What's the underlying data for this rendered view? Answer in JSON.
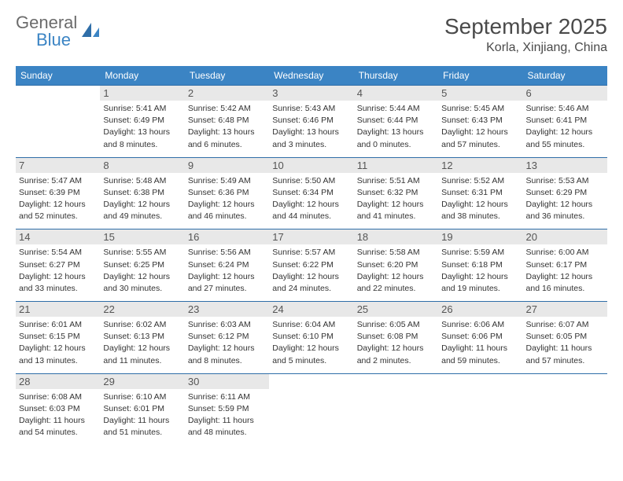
{
  "logo": {
    "text1": "General",
    "text2": "Blue",
    "icon_color": "#2f6ea8"
  },
  "title": "September 2025",
  "location": "Korla, Xinjiang, China",
  "colors": {
    "header_bg": "#3b84c4",
    "header_text": "#ffffff",
    "daynum_bg": "#e8e8e8",
    "daynum_text": "#555555",
    "cell_text": "#333333",
    "border": "#2f6ea8",
    "title_text": "#4a4a4a"
  },
  "weekdays": [
    "Sunday",
    "Monday",
    "Tuesday",
    "Wednesday",
    "Thursday",
    "Friday",
    "Saturday"
  ],
  "weeks": [
    [
      null,
      {
        "n": "1",
        "sr": "Sunrise: 5:41 AM",
        "ss": "Sunset: 6:49 PM",
        "d1": "Daylight: 13 hours",
        "d2": "and 8 minutes."
      },
      {
        "n": "2",
        "sr": "Sunrise: 5:42 AM",
        "ss": "Sunset: 6:48 PM",
        "d1": "Daylight: 13 hours",
        "d2": "and 6 minutes."
      },
      {
        "n": "3",
        "sr": "Sunrise: 5:43 AM",
        "ss": "Sunset: 6:46 PM",
        "d1": "Daylight: 13 hours",
        "d2": "and 3 minutes."
      },
      {
        "n": "4",
        "sr": "Sunrise: 5:44 AM",
        "ss": "Sunset: 6:44 PM",
        "d1": "Daylight: 13 hours",
        "d2": "and 0 minutes."
      },
      {
        "n": "5",
        "sr": "Sunrise: 5:45 AM",
        "ss": "Sunset: 6:43 PM",
        "d1": "Daylight: 12 hours",
        "d2": "and 57 minutes."
      },
      {
        "n": "6",
        "sr": "Sunrise: 5:46 AM",
        "ss": "Sunset: 6:41 PM",
        "d1": "Daylight: 12 hours",
        "d2": "and 55 minutes."
      }
    ],
    [
      {
        "n": "7",
        "sr": "Sunrise: 5:47 AM",
        "ss": "Sunset: 6:39 PM",
        "d1": "Daylight: 12 hours",
        "d2": "and 52 minutes."
      },
      {
        "n": "8",
        "sr": "Sunrise: 5:48 AM",
        "ss": "Sunset: 6:38 PM",
        "d1": "Daylight: 12 hours",
        "d2": "and 49 minutes."
      },
      {
        "n": "9",
        "sr": "Sunrise: 5:49 AM",
        "ss": "Sunset: 6:36 PM",
        "d1": "Daylight: 12 hours",
        "d2": "and 46 minutes."
      },
      {
        "n": "10",
        "sr": "Sunrise: 5:50 AM",
        "ss": "Sunset: 6:34 PM",
        "d1": "Daylight: 12 hours",
        "d2": "and 44 minutes."
      },
      {
        "n": "11",
        "sr": "Sunrise: 5:51 AM",
        "ss": "Sunset: 6:32 PM",
        "d1": "Daylight: 12 hours",
        "d2": "and 41 minutes."
      },
      {
        "n": "12",
        "sr": "Sunrise: 5:52 AM",
        "ss": "Sunset: 6:31 PM",
        "d1": "Daylight: 12 hours",
        "d2": "and 38 minutes."
      },
      {
        "n": "13",
        "sr": "Sunrise: 5:53 AM",
        "ss": "Sunset: 6:29 PM",
        "d1": "Daylight: 12 hours",
        "d2": "and 36 minutes."
      }
    ],
    [
      {
        "n": "14",
        "sr": "Sunrise: 5:54 AM",
        "ss": "Sunset: 6:27 PM",
        "d1": "Daylight: 12 hours",
        "d2": "and 33 minutes."
      },
      {
        "n": "15",
        "sr": "Sunrise: 5:55 AM",
        "ss": "Sunset: 6:25 PM",
        "d1": "Daylight: 12 hours",
        "d2": "and 30 minutes."
      },
      {
        "n": "16",
        "sr": "Sunrise: 5:56 AM",
        "ss": "Sunset: 6:24 PM",
        "d1": "Daylight: 12 hours",
        "d2": "and 27 minutes."
      },
      {
        "n": "17",
        "sr": "Sunrise: 5:57 AM",
        "ss": "Sunset: 6:22 PM",
        "d1": "Daylight: 12 hours",
        "d2": "and 24 minutes."
      },
      {
        "n": "18",
        "sr": "Sunrise: 5:58 AM",
        "ss": "Sunset: 6:20 PM",
        "d1": "Daylight: 12 hours",
        "d2": "and 22 minutes."
      },
      {
        "n": "19",
        "sr": "Sunrise: 5:59 AM",
        "ss": "Sunset: 6:18 PM",
        "d1": "Daylight: 12 hours",
        "d2": "and 19 minutes."
      },
      {
        "n": "20",
        "sr": "Sunrise: 6:00 AM",
        "ss": "Sunset: 6:17 PM",
        "d1": "Daylight: 12 hours",
        "d2": "and 16 minutes."
      }
    ],
    [
      {
        "n": "21",
        "sr": "Sunrise: 6:01 AM",
        "ss": "Sunset: 6:15 PM",
        "d1": "Daylight: 12 hours",
        "d2": "and 13 minutes."
      },
      {
        "n": "22",
        "sr": "Sunrise: 6:02 AM",
        "ss": "Sunset: 6:13 PM",
        "d1": "Daylight: 12 hours",
        "d2": "and 11 minutes."
      },
      {
        "n": "23",
        "sr": "Sunrise: 6:03 AM",
        "ss": "Sunset: 6:12 PM",
        "d1": "Daylight: 12 hours",
        "d2": "and 8 minutes."
      },
      {
        "n": "24",
        "sr": "Sunrise: 6:04 AM",
        "ss": "Sunset: 6:10 PM",
        "d1": "Daylight: 12 hours",
        "d2": "and 5 minutes."
      },
      {
        "n": "25",
        "sr": "Sunrise: 6:05 AM",
        "ss": "Sunset: 6:08 PM",
        "d1": "Daylight: 12 hours",
        "d2": "and 2 minutes."
      },
      {
        "n": "26",
        "sr": "Sunrise: 6:06 AM",
        "ss": "Sunset: 6:06 PM",
        "d1": "Daylight: 11 hours",
        "d2": "and 59 minutes."
      },
      {
        "n": "27",
        "sr": "Sunrise: 6:07 AM",
        "ss": "Sunset: 6:05 PM",
        "d1": "Daylight: 11 hours",
        "d2": "and 57 minutes."
      }
    ],
    [
      {
        "n": "28",
        "sr": "Sunrise: 6:08 AM",
        "ss": "Sunset: 6:03 PM",
        "d1": "Daylight: 11 hours",
        "d2": "and 54 minutes."
      },
      {
        "n": "29",
        "sr": "Sunrise: 6:10 AM",
        "ss": "Sunset: 6:01 PM",
        "d1": "Daylight: 11 hours",
        "d2": "and 51 minutes."
      },
      {
        "n": "30",
        "sr": "Sunrise: 6:11 AM",
        "ss": "Sunset: 5:59 PM",
        "d1": "Daylight: 11 hours",
        "d2": "and 48 minutes."
      },
      null,
      null,
      null,
      null
    ]
  ]
}
